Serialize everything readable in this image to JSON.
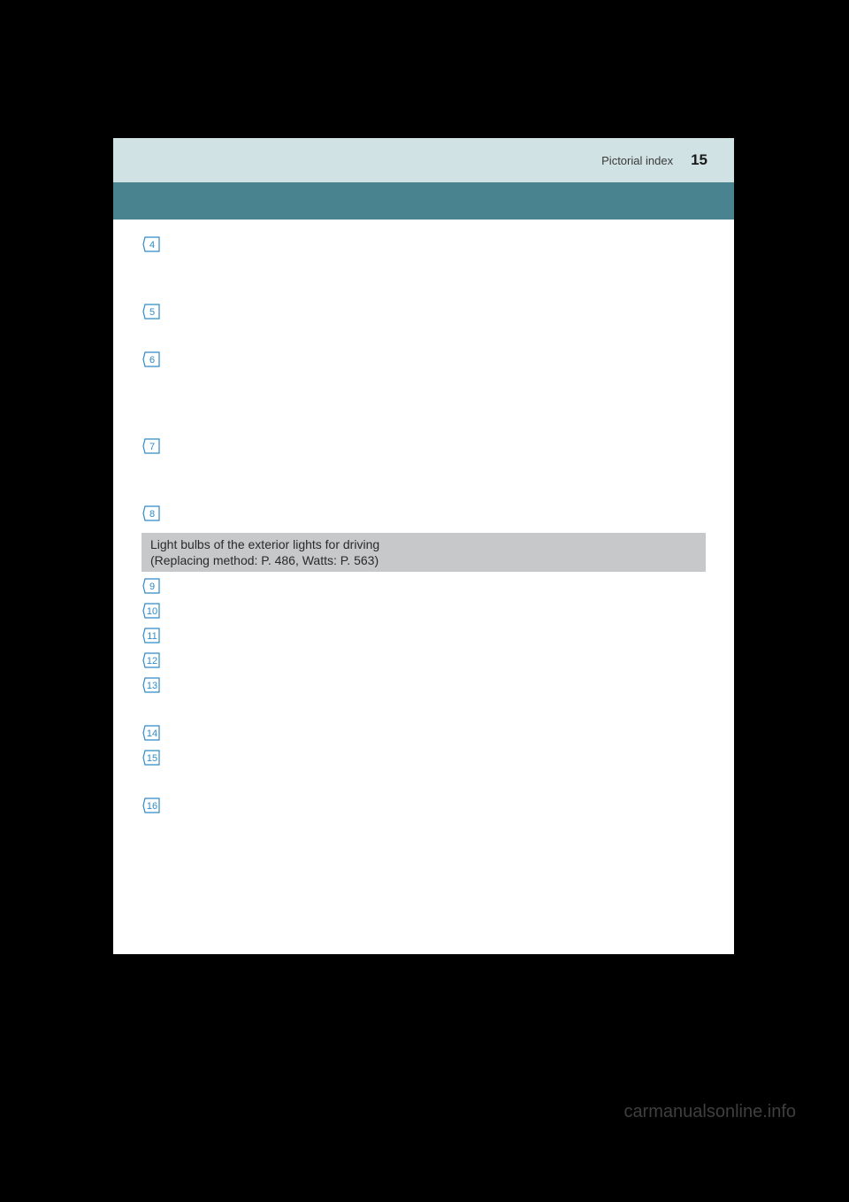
{
  "header": {
    "title": "Pictorial index",
    "page_number": "15"
  },
  "colors": {
    "page_bg": "#000000",
    "header_bg": "#d1e2e5",
    "subheader_bg": "#4a8390",
    "section_bar_bg": "#c6c8c9",
    "marker_stroke": "#2e8bc6",
    "marker_fill": "#ffffff",
    "text_dark": "#2a2a2a",
    "watermark_color": "#3f3f3f"
  },
  "items_top": [
    {
      "num": "4",
      "lines": 3
    },
    {
      "num": "5",
      "lines": 2
    },
    {
      "num": "6",
      "lines": 4
    },
    {
      "num": "7",
      "lines": 3
    },
    {
      "num": "8",
      "lines": 1
    }
  ],
  "section": {
    "title": "Light bulbs of the exterior lights for driving",
    "subtitle": "(Replacing method: P. 486, Watts: P. 563)"
  },
  "items_bottom": [
    {
      "num": "9",
      "lines": 1
    },
    {
      "num": "10",
      "lines": 1
    },
    {
      "num": "11",
      "lines": 1
    },
    {
      "num": "12",
      "lines": 1
    },
    {
      "num": "13",
      "lines": 2
    },
    {
      "num": "14",
      "lines": 1
    },
    {
      "num": "15",
      "lines": 2
    },
    {
      "num": "16",
      "lines": 1
    }
  ],
  "watermark": "carmanualsonline.info"
}
